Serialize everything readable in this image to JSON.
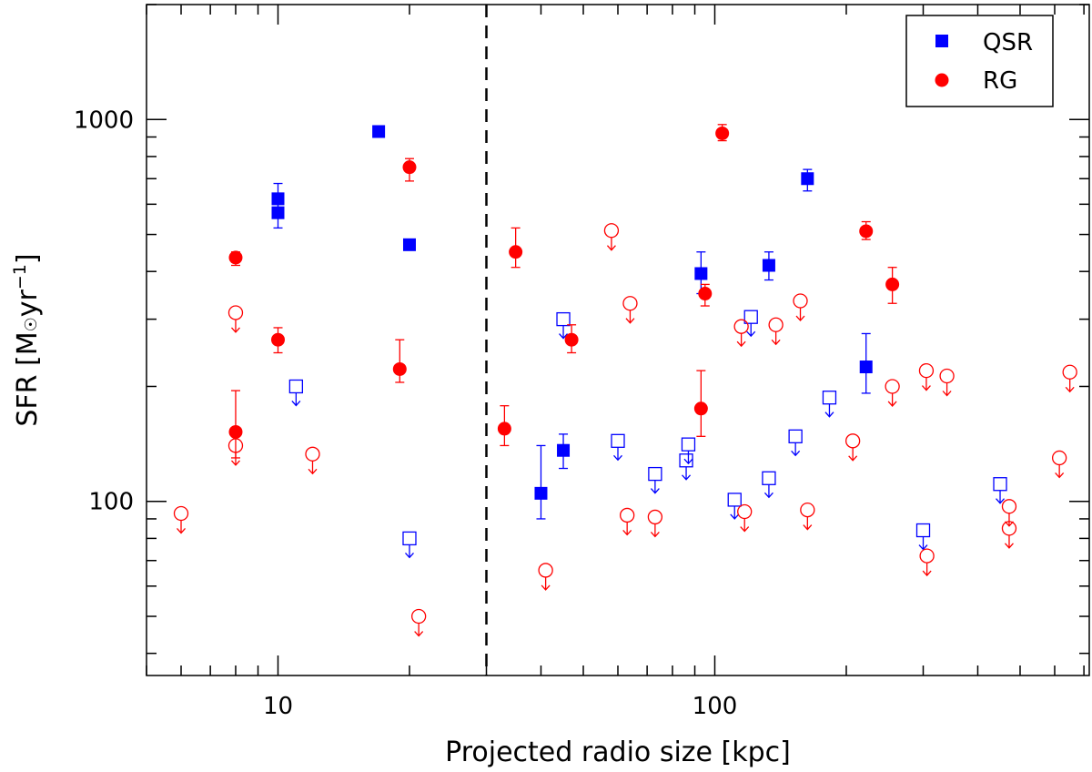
{
  "chart_data": {
    "type": "scatter",
    "xlabel": "Projected radio size [kpc]",
    "ylabel_main": "SFR [M",
    "ylabel_sun": "☉",
    "ylabel_unit": "yr",
    "ylabel_exp": "−1",
    "ylabel_close": "]",
    "x_scale": "log",
    "y_scale": "log",
    "xlim": [
      5,
      720
    ],
    "ylim": [
      35,
      2000
    ],
    "x_ticklabels": [
      "10",
      "100"
    ],
    "y_ticklabels": [
      "100",
      "1000"
    ],
    "vline_x": 30,
    "vline_style": "dashed",
    "legend": {
      "position": "top-right",
      "entries": [
        {
          "label": "QSR",
          "color": "#0000ff",
          "marker": "filled-square"
        },
        {
          "label": "RG",
          "color": "#ff0000",
          "marker": "filled-circle"
        }
      ]
    },
    "series": [
      {
        "name": "QSR",
        "color": "#0000ff",
        "detections": [
          {
            "x": 10,
            "y": 570,
            "ylo": 520,
            "yhi": 640
          },
          {
            "x": 10,
            "y": 620,
            "ylo": 560,
            "yhi": 680
          },
          {
            "x": 17,
            "y": 930
          },
          {
            "x": 20,
            "y": 470
          },
          {
            "x": 40,
            "y": 105,
            "ylo": 90,
            "yhi": 140
          },
          {
            "x": 45,
            "y": 136,
            "ylo": 122,
            "yhi": 150
          },
          {
            "x": 93,
            "y": 395,
            "ylo": 350,
            "yhi": 450
          },
          {
            "x": 133,
            "y": 415,
            "ylo": 380,
            "yhi": 450
          },
          {
            "x": 163,
            "y": 700,
            "ylo": 650,
            "yhi": 740
          },
          {
            "x": 222,
            "y": 225,
            "ylo": 192,
            "yhi": 275
          }
        ],
        "upper_limits": [
          {
            "x": 11,
            "y": 200
          },
          {
            "x": 20,
            "y": 80
          },
          {
            "x": 45,
            "y": 300
          },
          {
            "x": 60,
            "y": 144
          },
          {
            "x": 73,
            "y": 118
          },
          {
            "x": 86,
            "y": 128
          },
          {
            "x": 87,
            "y": 141
          },
          {
            "x": 111,
            "y": 101
          },
          {
            "x": 121,
            "y": 304
          },
          {
            "x": 133,
            "y": 115
          },
          {
            "x": 153,
            "y": 148
          },
          {
            "x": 183,
            "y": 187
          },
          {
            "x": 300,
            "y": 84
          },
          {
            "x": 450,
            "y": 111
          }
        ]
      },
      {
        "name": "RG",
        "color": "#ff0000",
        "detections": [
          {
            "x": 8,
            "y": 152,
            "ylo": 130,
            "yhi": 195
          },
          {
            "x": 8,
            "y": 435,
            "ylo": 415,
            "yhi": 450
          },
          {
            "x": 10,
            "y": 265,
            "ylo": 245,
            "yhi": 285
          },
          {
            "x": 19,
            "y": 222,
            "ylo": 205,
            "yhi": 265
          },
          {
            "x": 20,
            "y": 750,
            "ylo": 690,
            "yhi": 790
          },
          {
            "x": 33,
            "y": 155,
            "ylo": 140,
            "yhi": 178
          },
          {
            "x": 35,
            "y": 450,
            "ylo": 410,
            "yhi": 520
          },
          {
            "x": 47,
            "y": 265,
            "ylo": 245,
            "yhi": 290
          },
          {
            "x": 93,
            "y": 175,
            "ylo": 148,
            "yhi": 220
          },
          {
            "x": 95,
            "y": 350,
            "ylo": 325,
            "yhi": 370
          },
          {
            "x": 104,
            "y": 920,
            "ylo": 880,
            "yhi": 970
          },
          {
            "x": 222,
            "y": 510,
            "ylo": 485,
            "yhi": 540
          },
          {
            "x": 255,
            "y": 370,
            "ylo": 330,
            "yhi": 410
          }
        ],
        "upper_limits": [
          {
            "x": 6,
            "y": 93
          },
          {
            "x": 8,
            "y": 140
          },
          {
            "x": 8,
            "y": 312
          },
          {
            "x": 12,
            "y": 133
          },
          {
            "x": 21,
            "y": 50
          },
          {
            "x": 41,
            "y": 66
          },
          {
            "x": 58,
            "y": 512
          },
          {
            "x": 63,
            "y": 92
          },
          {
            "x": 64,
            "y": 330
          },
          {
            "x": 73,
            "y": 91
          },
          {
            "x": 115,
            "y": 287
          },
          {
            "x": 117,
            "y": 94
          },
          {
            "x": 138,
            "y": 290
          },
          {
            "x": 157,
            "y": 335
          },
          {
            "x": 163,
            "y": 95
          },
          {
            "x": 207,
            "y": 144
          },
          {
            "x": 255,
            "y": 200
          },
          {
            "x": 305,
            "y": 220
          },
          {
            "x": 306,
            "y": 72
          },
          {
            "x": 340,
            "y": 213
          },
          {
            "x": 472,
            "y": 97
          },
          {
            "x": 472,
            "y": 85
          },
          {
            "x": 615,
            "y": 130
          },
          {
            "x": 650,
            "y": 218
          }
        ]
      }
    ]
  }
}
